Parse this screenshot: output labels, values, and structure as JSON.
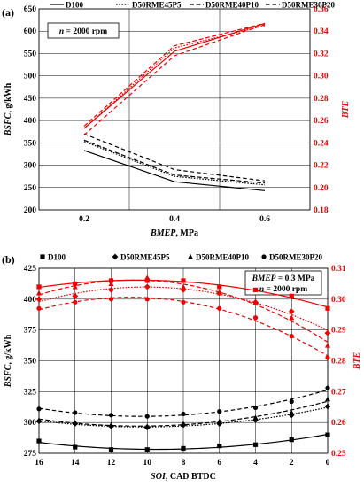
{
  "chart_data": [
    {
      "type": "line",
      "panel_label": "(a)",
      "annotation": {
        "var": "n",
        "rest": " = 2000 rpm"
      },
      "x": [
        0.2,
        0.4,
        0.6
      ],
      "x_ticks": [
        "0.2",
        "0.4",
        "0.6"
      ],
      "xlim": [
        0.1,
        0.7
      ],
      "xlabel": {
        "italic": "BMEP",
        "rest": ", MPa"
      },
      "ylabel_left": {
        "italic": "BSFC",
        "rest": ", g/kWh"
      },
      "ylabel_right": "BTE",
      "ylim_left": [
        200,
        650
      ],
      "ylim_right": [
        0.18,
        0.36
      ],
      "y_ticks_left": [
        "200",
        "250",
        "300",
        "350",
        "400",
        "450",
        "500",
        "550",
        "600",
        "650"
      ],
      "y_ticks_right": [
        "0.18",
        "0.20",
        "0.22",
        "0.24",
        "0.26",
        "0.28",
        "0.30",
        "0.32",
        "0.34",
        "0.36"
      ],
      "grid": true,
      "legend_position": "top",
      "legend": [
        "D100",
        "D50RME45P5",
        "D50RME40P10",
        "D50RME30P20"
      ],
      "series_bsfc": [
        {
          "name": "D100",
          "values": [
            333,
            263,
            243
          ]
        },
        {
          "name": "D50RME45P5",
          "values": [
            353,
            275,
            256
          ]
        },
        {
          "name": "D50RME40P10",
          "values": [
            356,
            278,
            260
          ]
        },
        {
          "name": "D50RME30P20",
          "values": [
            370,
            290,
            265
          ]
        }
      ],
      "series_bte": [
        {
          "name": "D100",
          "values": [
            0.253,
            0.322,
            0.347
          ]
        },
        {
          "name": "D50RME45P5",
          "values": [
            0.253,
            0.325,
            0.345
          ]
        },
        {
          "name": "D50RME40P10",
          "values": [
            0.255,
            0.327,
            0.347
          ]
        },
        {
          "name": "D50RME30P20",
          "values": [
            0.247,
            0.318,
            0.346
          ]
        }
      ]
    },
    {
      "type": "line",
      "panel_label": "(b)",
      "annotation": {
        "line1": {
          "var": "BMEP",
          "rest": " = 0.3 MPa"
        },
        "line2": {
          "var": "n",
          "rest": " = 2000 rpm"
        }
      },
      "x": [
        16,
        14,
        12,
        10,
        8,
        6,
        4,
        2,
        0
      ],
      "x_ticks": [
        "16",
        "14",
        "12",
        "10",
        "8",
        "6",
        "4",
        "2",
        "0"
      ],
      "xlabel": {
        "italic": "SOI",
        "rest": ", CAD BTDC"
      },
      "ylabel_left": {
        "italic": "BSFC",
        "rest": ", g/kWh"
      },
      "ylabel_right": "BTE",
      "ylim_left": [
        275,
        425
      ],
      "ylim_right": [
        0.25,
        0.31
      ],
      "y_ticks_left": [
        "275",
        "300",
        "325",
        "350",
        "375",
        "400",
        "425"
      ],
      "y_ticks_right": [
        "0.25",
        "0.26",
        "0.27",
        "0.28",
        "0.29",
        "0.30",
        "0.31"
      ],
      "grid": true,
      "legend_position": "top",
      "legend": [
        "D100",
        "D50RME45P5",
        "D50RME40P10",
        "D50RME30P20"
      ],
      "series_bsfc": [
        {
          "name": "D100",
          "values": [
            285,
            280,
            278,
            278,
            279,
            281,
            282,
            286,
            290
          ]
        },
        {
          "name": "D50RME45P5",
          "values": [
            301,
            299,
            297,
            296,
            298,
            299,
            302,
            306,
            313
          ]
        },
        {
          "name": "D50RME40P10",
          "values": [
            302,
            300,
            298,
            297,
            299,
            301,
            304,
            308,
            319
          ]
        },
        {
          "name": "D50RME30P20",
          "values": [
            311,
            308,
            306,
            305,
            307,
            309,
            312,
            317,
            328
          ]
        }
      ],
      "series_bte": [
        {
          "name": "D100",
          "values": [
            0.304,
            0.305,
            0.306,
            0.306,
            0.306,
            0.304,
            0.303,
            0.301,
            0.297
          ]
        },
        {
          "name": "D50RME45P5",
          "values": [
            0.3,
            0.301,
            0.303,
            0.304,
            0.303,
            0.302,
            0.299,
            0.296,
            0.289
          ]
        },
        {
          "name": "D50RME40P10",
          "values": [
            0.302,
            0.304,
            0.305,
            0.307,
            0.304,
            0.302,
            0.299,
            0.294,
            0.285
          ]
        },
        {
          "name": "D50RME30P20",
          "values": [
            0.297,
            0.299,
            0.3,
            0.3,
            0.299,
            0.297,
            0.294,
            0.288,
            0.281
          ]
        }
      ]
    }
  ]
}
